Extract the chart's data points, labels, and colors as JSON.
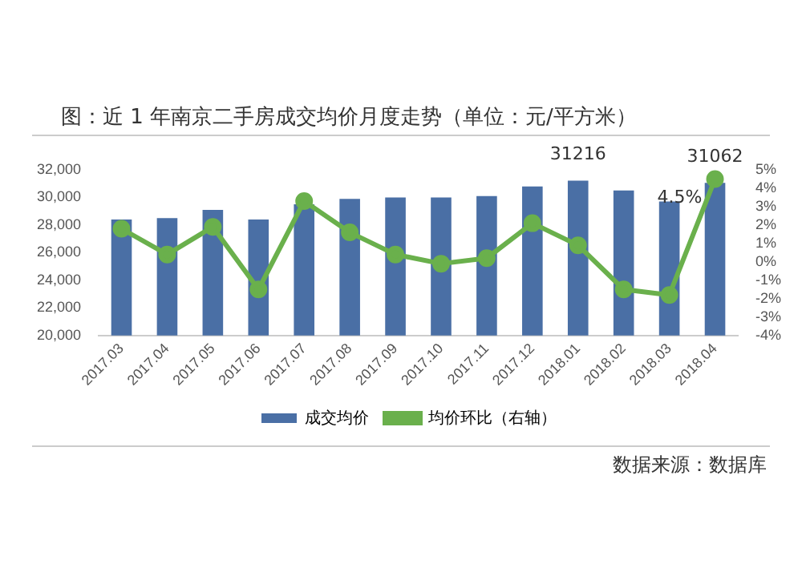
{
  "chart_data": {
    "type": "bar",
    "title": "图：近 1 年南京二手房成交均价月度走势（单位：元/平方米）",
    "categories": [
      "2017.03",
      "2017.04",
      "2017.05",
      "2017.06",
      "2017.07",
      "2017.08",
      "2017.09",
      "2017.10",
      "2017.11",
      "2017.12",
      "2018.01",
      "2018.02",
      "2018.03",
      "2018.04"
    ],
    "series": [
      {
        "name": "成交均价",
        "color": "#4a6fa5",
        "values": [
          28400,
          28500,
          29100,
          28400,
          29500,
          29900,
          30000,
          30000,
          30100,
          30800,
          31216,
          30500,
          29700,
          31062
        ],
        "value_labels": [
          null,
          null,
          null,
          null,
          null,
          null,
          null,
          null,
          null,
          null,
          "31216",
          null,
          null,
          "31062"
        ]
      },
      {
        "name": "均价环比（右轴）",
        "type": "line",
        "axis": "y2",
        "color": "#6ab04c",
        "marker": "circle",
        "values": [
          1.8,
          0.4,
          1.9,
          -1.5,
          3.3,
          1.6,
          0.4,
          -0.1,
          0.2,
          2.1,
          0.9,
          -1.5,
          -1.8,
          4.5
        ],
        "value_labels": [
          null,
          null,
          null,
          null,
          null,
          null,
          null,
          null,
          null,
          null,
          null,
          null,
          null,
          "4.5%"
        ]
      }
    ],
    "ylim": [
      20000,
      32000
    ],
    "yticks": [
      {
        "value": 20000,
        "label": "20,000"
      },
      {
        "value": 22000,
        "label": "22,000"
      },
      {
        "value": 24000,
        "label": "24,000"
      },
      {
        "value": 26000,
        "label": "26,000"
      },
      {
        "value": 28000,
        "label": "28,000"
      },
      {
        "value": 30000,
        "label": "30,000"
      },
      {
        "value": 32000,
        "label": "32,000"
      }
    ],
    "y2lim": [
      -4,
      5
    ],
    "y2ticks": [
      {
        "value": -4,
        "label": "-4%"
      },
      {
        "value": -3,
        "label": "-3%"
      },
      {
        "value": -2,
        "label": "-2%"
      },
      {
        "value": -1,
        "label": "-1%"
      },
      {
        "value": 0,
        "label": "0%"
      },
      {
        "value": 1,
        "label": "1%"
      },
      {
        "value": 2,
        "label": "2%"
      },
      {
        "value": 3,
        "label": "3%"
      },
      {
        "value": 4,
        "label": "4%"
      },
      {
        "value": 5,
        "label": "5%"
      }
    ],
    "legend": "bottom",
    "grid": false,
    "annotations": [
      "数据来源：数据库"
    ]
  }
}
